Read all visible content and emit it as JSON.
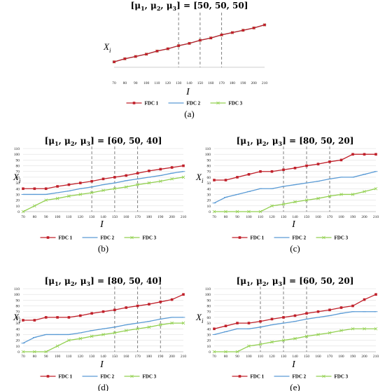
{
  "colors": {
    "FDC 1": "#c0202a",
    "FDC 2": "#5b9bd5",
    "FDC 3": "#92d050",
    "dashed": "#808080",
    "grid": "#d9d9d9"
  },
  "axis_labels": {
    "y": "X",
    "y_sub": "i",
    "x": "I"
  },
  "chart_data": [
    {
      "type": "line",
      "title": "[μ1, μ2, μ3] = [50, 50, 50]",
      "title_parts": [
        "μ1",
        "μ2",
        "μ3",
        "[50, 50, 50]"
      ],
      "caption": "(a)",
      "x": [
        70,
        80,
        90,
        100,
        110,
        120,
        130,
        140,
        150,
        160,
        170,
        180,
        190,
        200,
        210
      ],
      "xlim": [
        70,
        210
      ],
      "ylim": [
        15,
        75
      ],
      "y_ticks": [],
      "grid": false,
      "legend": "bottom",
      "vlines": [
        130,
        150,
        170
      ],
      "series": [
        {
          "name": "FDC 1",
          "values": [
            22,
            26,
            29,
            32,
            36,
            39,
            43,
            46,
            50,
            53,
            57,
            60,
            63,
            66,
            70
          ]
        },
        {
          "name": "FDC 2",
          "values": [
            22,
            26,
            29,
            32,
            36,
            39,
            43,
            46,
            50,
            53,
            57,
            60,
            63,
            66,
            70
          ]
        },
        {
          "name": "FDC 3",
          "values": [
            22,
            26,
            29,
            32,
            36,
            39,
            43,
            46,
            50,
            53,
            57,
            60,
            63,
            66,
            70
          ]
        }
      ]
    },
    {
      "type": "line",
      "title": "[μ1, μ2, μ3] = [60, 50, 40]",
      "title_parts": [
        "μ1",
        "μ2",
        "μ3",
        "[60, 50, 40]"
      ],
      "caption": "(b)",
      "x": [
        70,
        80,
        90,
        100,
        110,
        120,
        130,
        140,
        150,
        160,
        170,
        180,
        190,
        200,
        210
      ],
      "xlim": [
        70,
        210
      ],
      "ylim": [
        0,
        110
      ],
      "y_ticks": [
        0,
        10,
        20,
        30,
        40,
        50,
        60,
        70,
        80,
        90,
        100,
        110
      ],
      "grid": true,
      "legend": "bottom",
      "vlines": [
        130,
        150,
        170
      ],
      "series": [
        {
          "name": "FDC 1",
          "values": [
            40,
            40,
            40,
            44,
            47,
            50,
            53,
            57,
            60,
            63,
            67,
            71,
            74,
            77,
            80
          ]
        },
        {
          "name": "FDC 2",
          "values": [
            30,
            30,
            30,
            33,
            36,
            40,
            43,
            47,
            50,
            54,
            57,
            60,
            63,
            67,
            70
          ]
        },
        {
          "name": "FDC 3",
          "values": [
            0,
            10,
            20,
            23,
            27,
            30,
            33,
            37,
            40,
            43,
            47,
            50,
            53,
            57,
            60
          ]
        }
      ]
    },
    {
      "type": "line",
      "title": "[μ1, μ2, μ3] = [80, 50, 20]",
      "title_parts": [
        "μ1",
        "μ2",
        "μ3",
        "[80, 50, 20]"
      ],
      "caption": "(c)",
      "x": [
        70,
        80,
        90,
        100,
        110,
        120,
        130,
        140,
        150,
        160,
        170,
        180,
        190,
        200,
        210
      ],
      "xlim": [
        70,
        210
      ],
      "ylim": [
        0,
        110
      ],
      "y_ticks": [
        0,
        10,
        20,
        30,
        40,
        50,
        60,
        70,
        80,
        90,
        100,
        110
      ],
      "grid": true,
      "legend": "bottom",
      "vlines": [
        130,
        150,
        170
      ],
      "series": [
        {
          "name": "FDC 1",
          "values": [
            55,
            55,
            60,
            65,
            70,
            70,
            73,
            76,
            80,
            83,
            87,
            90,
            100,
            100,
            100
          ]
        },
        {
          "name": "FDC 2",
          "values": [
            15,
            25,
            30,
            35,
            40,
            40,
            44,
            47,
            50,
            53,
            57,
            60,
            60,
            65,
            70
          ]
        },
        {
          "name": "FDC 3",
          "values": [
            0,
            0,
            0,
            0,
            0,
            10,
            13,
            17,
            20,
            23,
            27,
            30,
            30,
            35,
            40
          ]
        }
      ]
    },
    {
      "type": "line",
      "title": "[μ1, μ2, μ3] = [80, 50, 40]",
      "title_parts": [
        "μ1",
        "μ2",
        "μ3",
        "[80, 50, 40]"
      ],
      "caption": "(d)",
      "x": [
        70,
        80,
        90,
        100,
        110,
        120,
        130,
        140,
        150,
        160,
        170,
        180,
        190,
        200,
        210
      ],
      "xlim": [
        70,
        210
      ],
      "ylim": [
        0,
        110
      ],
      "y_ticks": [
        0,
        10,
        20,
        30,
        40,
        50,
        60,
        70,
        80,
        90,
        100,
        110
      ],
      "grid": true,
      "legend": "bottom",
      "vlines": [
        150,
        170,
        190
      ],
      "series": [
        {
          "name": "FDC 1",
          "values": [
            55,
            55,
            60,
            60,
            60,
            63,
            67,
            70,
            73,
            77,
            80,
            83,
            87,
            91,
            100
          ]
        },
        {
          "name": "FDC 2",
          "values": [
            15,
            25,
            30,
            30,
            30,
            33,
            37,
            40,
            43,
            47,
            50,
            53,
            57,
            60,
            60
          ]
        },
        {
          "name": "FDC 3",
          "values": [
            0,
            0,
            0,
            10,
            20,
            23,
            27,
            30,
            33,
            37,
            40,
            43,
            47,
            50,
            50
          ]
        }
      ]
    },
    {
      "type": "line",
      "title": "[μ1, μ2, μ3] = [60, 50, 20]",
      "title_parts": [
        "μ1",
        "μ2",
        "μ3",
        "[60, 50, 20]"
      ],
      "caption": "(e)",
      "x": [
        70,
        80,
        90,
        100,
        110,
        120,
        130,
        140,
        150,
        160,
        170,
        180,
        190,
        200,
        210
      ],
      "xlim": [
        70,
        210
      ],
      "ylim": [
        0,
        110
      ],
      "y_ticks": [
        0,
        10,
        20,
        30,
        40,
        50,
        60,
        70,
        80,
        90,
        100,
        110
      ],
      "grid": true,
      "legend": "bottom",
      "vlines": [
        110,
        130,
        150
      ],
      "series": [
        {
          "name": "FDC 1",
          "values": [
            40,
            45,
            50,
            50,
            53,
            57,
            60,
            63,
            67,
            70,
            73,
            77,
            80,
            91,
            100
          ]
        },
        {
          "name": "FDC 2",
          "values": [
            30,
            35,
            40,
            40,
            43,
            47,
            50,
            53,
            57,
            60,
            63,
            67,
            70,
            70,
            70
          ]
        },
        {
          "name": "FDC 3",
          "values": [
            0,
            0,
            0,
            10,
            13,
            17,
            20,
            23,
            27,
            30,
            33,
            37,
            40,
            40,
            40
          ]
        }
      ]
    }
  ]
}
